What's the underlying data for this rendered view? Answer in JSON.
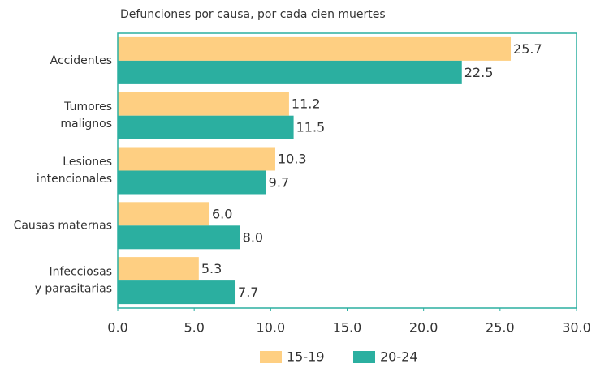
{
  "chart_data": {
    "type": "bar",
    "orientation": "horizontal",
    "title": "Defunciones por causa, por cada cien muertes",
    "categories": [
      [
        "Accidentes"
      ],
      [
        "Tumores",
        "malignos"
      ],
      [
        "Lesiones",
        "intencionales"
      ],
      [
        "Causas maternas"
      ],
      [
        "Infecciosas",
        "y parasitarias"
      ]
    ],
    "series": [
      {
        "name": "15-19",
        "color": "#fecf82",
        "values": [
          25.7,
          11.2,
          10.3,
          6.0,
          5.3
        ],
        "value_labels": [
          "25.7",
          "11.2",
          "10.3",
          "6.0",
          "5.3"
        ]
      },
      {
        "name": "20-24",
        "color": "#2bafa0",
        "values": [
          22.5,
          11.5,
          9.7,
          8.0,
          7.7
        ],
        "value_labels": [
          "22.5",
          "11.5",
          "9.7",
          "8.0",
          "7.7"
        ]
      }
    ],
    "xlim": [
      0,
      30
    ],
    "xticks": [
      {
        "value": 0,
        "label": "0.0"
      },
      {
        "value": 5,
        "label": "5.0"
      },
      {
        "value": 10,
        "label": "10.0"
      },
      {
        "value": 15,
        "label": "15.0"
      },
      {
        "value": 20,
        "label": "20.0"
      },
      {
        "value": 25,
        "label": "25.0"
      },
      {
        "value": 30,
        "label": "30.0"
      }
    ],
    "legend": "bottom",
    "frame_color": "#2bafa0"
  }
}
